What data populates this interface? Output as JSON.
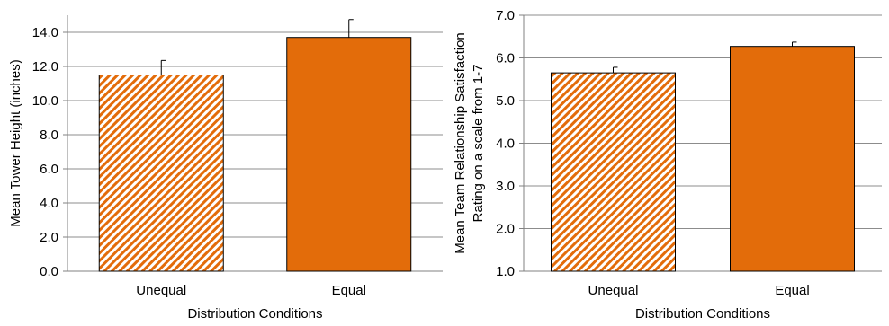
{
  "chart_data": [
    {
      "type": "bar",
      "categories": [
        "Unequal",
        "Equal"
      ],
      "values": [
        11.5,
        13.7
      ],
      "error_bars": [
        0.85,
        1.05
      ],
      "bar_styles": [
        "hatched",
        "solid"
      ],
      "xlabel": "Distribution Conditions",
      "ylabel": "Mean Tower Height (inches)",
      "ylim": [
        0,
        15
      ],
      "yticks": [
        "0.0",
        "2.0",
        "4.0",
        "6.0",
        "8.0",
        "10.0",
        "12.0",
        "14.0"
      ],
      "grid": true
    },
    {
      "type": "bar",
      "categories": [
        "Unequal",
        "Equal"
      ],
      "values": [
        5.65,
        6.27
      ],
      "error_bars": [
        0.13,
        0.1
      ],
      "bar_styles": [
        "hatched",
        "solid"
      ],
      "xlabel": "Distribution Conditions",
      "ylabel_lines": [
        "Mean Team Relationship Satisfaction",
        "Rating on a scale from 1-7"
      ],
      "ylim": [
        1,
        7
      ],
      "yticks": [
        "1.0",
        "2.0",
        "3.0",
        "4.0",
        "5.0",
        "6.0",
        "7.0"
      ],
      "grid": true
    }
  ],
  "colors": {
    "bar_fill": "#e36c0a",
    "bar_outline": "#000000",
    "hatch_background": "#ffffff",
    "gridline": "#8c8c8c",
    "axis": "#808080"
  }
}
